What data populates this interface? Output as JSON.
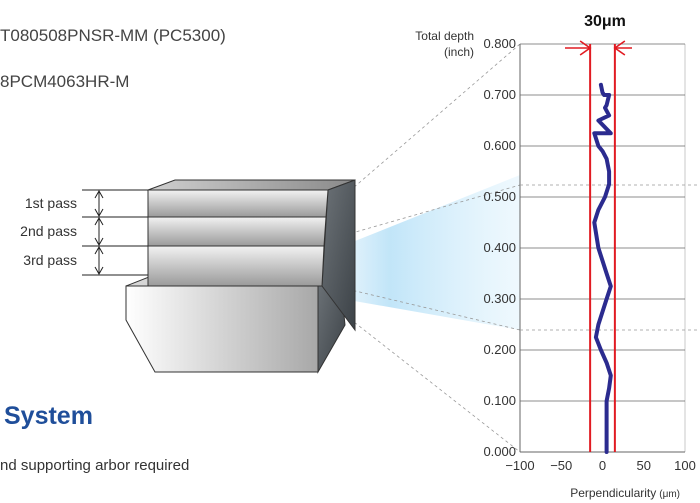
{
  "text": {
    "partial_top": "",
    "insert_line": "T080508PNSR-MM (PC5300)",
    "holder_line": "8PCM4063HR-M",
    "section_heading": "System",
    "note": "nd supporting arbor required"
  },
  "passes": [
    "1st pass",
    "2nd pass",
    "3rd pass"
  ],
  "colors": {
    "heading": "#1f4e9a",
    "profile_line": "#2b2b8f",
    "limit_line": "#e11b22",
    "arrow": "#e11b22",
    "grid": "#666666"
  },
  "chart_data": {
    "type": "line",
    "title": "30μm",
    "ylabel_line1": "Total depth",
    "ylabel_line2": "(inch)",
    "xlabel_main": "Perpendicularity",
    "xlabel_unit": "(μm)",
    "ylim": [
      0,
      0.8
    ],
    "xlim": [
      -100,
      100
    ],
    "yticks": [
      "0.000",
      "0.100",
      "0.200",
      "0.300",
      "0.400",
      "0.500",
      "0.600",
      "0.700",
      "0.800"
    ],
    "xticks": [
      "−100",
      "−50",
      "0",
      "50",
      "100"
    ],
    "xtick_values": [
      -100,
      -50,
      0,
      50,
      100
    ],
    "limits": [
      -15,
      15
    ],
    "series": [
      {
        "x": [
          5,
          5,
          5,
          8,
          10,
          5,
          -2,
          -8,
          -5,
          0,
          5,
          10,
          5,
          0,
          -5,
          -10,
          -5,
          3,
          8,
          8,
          5,
          0,
          -5,
          -10,
          -5,
          3,
          8,
          10,
          8,
          5,
          2,
          0,
          -2
        ],
        "y": [
          0.0,
          0.05,
          0.1,
          0.125,
          0.15,
          0.175,
          0.2,
          0.225,
          0.25,
          0.275,
          0.3,
          0.325,
          0.35,
          0.375,
          0.4,
          0.45,
          0.475,
          0.5,
          0.525,
          0.55,
          0.575,
          0.59,
          0.6,
          0.625,
          0.65,
          0.675,
          0.7,
          0.625,
          0.66,
          0.68,
          0.7,
          0.705,
          0.72
        ]
      }
    ]
  }
}
